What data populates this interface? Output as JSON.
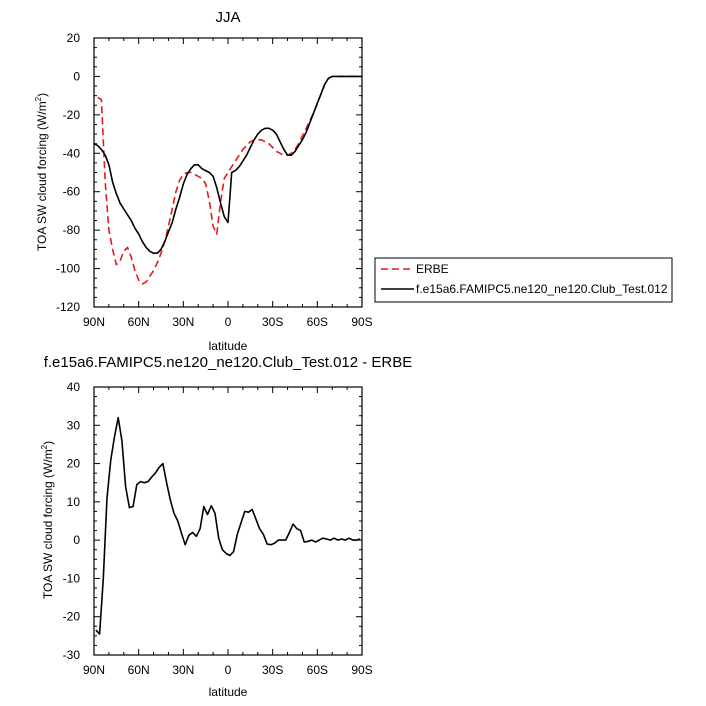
{
  "chart_data": [
    {
      "type": "line",
      "title": "JJA",
      "xlabel": "latitude",
      "ylabel_main": "TOA SW cloud forcing (W/m",
      "ylabel_sup": "2",
      "ylabel_end": ")",
      "xlim": [
        90,
        -90
      ],
      "ylim": [
        -120,
        20
      ],
      "x_ticks": [
        {
          "v": 90,
          "label": "90N"
        },
        {
          "v": 60,
          "label": "60N"
        },
        {
          "v": 30,
          "label": "30N"
        },
        {
          "v": 0,
          "label": "0"
        },
        {
          "v": -30,
          "label": "30S"
        },
        {
          "v": -60,
          "label": "60S"
        },
        {
          "v": -90,
          "label": "90S"
        }
      ],
      "y_ticks": [
        {
          "v": 20,
          "label": "20"
        },
        {
          "v": 0,
          "label": "0"
        },
        {
          "v": -20,
          "label": "-20"
        },
        {
          "v": -40,
          "label": "-40"
        },
        {
          "v": -60,
          "label": "-60"
        },
        {
          "v": -80,
          "label": "-80"
        },
        {
          "v": -100,
          "label": "-100"
        },
        {
          "v": -120,
          "label": "-120"
        }
      ],
      "legend_position": "right",
      "series": [
        {
          "name": "ERBE",
          "color": "#e41a1c",
          "dash": "dashed",
          "x": [
            87.5,
            85,
            82.5,
            80,
            77.5,
            75,
            72.5,
            70,
            67.5,
            65,
            62.5,
            60,
            57.5,
            55,
            52.5,
            50,
            47.5,
            45,
            42.5,
            40,
            37.5,
            35,
            32.5,
            30,
            27.5,
            25,
            22.5,
            20,
            17.5,
            15,
            12.5,
            10,
            7.5,
            5,
            2.5,
            0,
            -2.5,
            -5,
            -7.5,
            -10,
            -12.5,
            -15,
            -17.5,
            -20,
            -22.5,
            -25,
            -27.5,
            -30,
            -32.5,
            -35,
            -37.5,
            -40,
            -42.5,
            -45,
            -47.5,
            -50,
            -52.5,
            -55,
            -57.5,
            -60,
            -62.5,
            -65,
            -67.5,
            -70,
            -72.5,
            -75,
            -77.5,
            -80,
            -82.5,
            -85,
            -87.5
          ],
          "y": [
            -11,
            -12,
            -55,
            -80,
            -90,
            -98,
            -96,
            -91,
            -89,
            -94,
            -101,
            -106,
            -108,
            -107,
            -104,
            -101,
            -97,
            -92,
            -86,
            -78,
            -69,
            -60,
            -54,
            -51,
            -50,
            -50,
            -51,
            -52,
            -53,
            -56,
            -65,
            -78,
            -82,
            -65,
            -53,
            -50,
            -47,
            -44,
            -41,
            -38,
            -36,
            -34,
            -33,
            -33,
            -33,
            -34,
            -35,
            -37,
            -39,
            -40,
            -41,
            -41,
            -40,
            -38,
            -35,
            -31,
            -27,
            -23,
            -19,
            -14,
            -9,
            -4,
            -1,
            0,
            0,
            0,
            0,
            0,
            0,
            0,
            0
          ]
        },
        {
          "name": "f.e15a6.FAMIPC5.ne120_ne120.Club_Test.012",
          "color": "#000000",
          "dash": "solid",
          "x": [
            90,
            87.5,
            85,
            82.5,
            80,
            77.5,
            75,
            72.5,
            70,
            67.5,
            65,
            62.5,
            60,
            57.5,
            55,
            52.5,
            50,
            47.5,
            45,
            42.5,
            40,
            37.5,
            35,
            32.5,
            30,
            27.5,
            25,
            22.5,
            20,
            17.5,
            15,
            12.5,
            10,
            7.5,
            5,
            2.5,
            0,
            -2.5,
            -5,
            -7.5,
            -10,
            -12.5,
            -15,
            -17.5,
            -20,
            -22.5,
            -25,
            -27.5,
            -30,
            -32.5,
            -35,
            -37.5,
            -40,
            -42.5,
            -45,
            -47.5,
            -50,
            -52.5,
            -55,
            -57.5,
            -60,
            -62.5,
            -65,
            -67.5,
            -70,
            -72.5,
            -75,
            -77.5,
            -80,
            -82.5,
            -85,
            -87.5,
            -90
          ],
          "y": [
            -35,
            -36,
            -38,
            -41,
            -46,
            -55,
            -61,
            -66,
            -69,
            -72,
            -75,
            -79,
            -82,
            -86,
            -89,
            -91,
            -92,
            -92,
            -90,
            -86,
            -81,
            -76,
            -69,
            -63,
            -56,
            -51,
            -48,
            -46,
            -46,
            -48,
            -49,
            -50,
            -52,
            -58,
            -66,
            -73,
            -76,
            -50,
            -49,
            -47,
            -44,
            -41,
            -37,
            -33,
            -30,
            -28,
            -27,
            -27,
            -28,
            -30,
            -34,
            -38,
            -41,
            -41,
            -39,
            -36,
            -33,
            -29,
            -24,
            -19,
            -14,
            -9,
            -4,
            -1,
            0,
            0,
            0,
            0,
            0,
            0,
            0,
            0,
            0
          ]
        }
      ]
    },
    {
      "type": "line",
      "title": "f.e15a6.FAMIPC5.ne120_ne120.Club_Test.012 - ERBE",
      "xlabel": "latitude",
      "ylabel_main": "TOA SW cloud forcing (W/m",
      "ylabel_sup": "2",
      "ylabel_end": ")",
      "xlim": [
        90,
        -90
      ],
      "ylim": [
        -30,
        40
      ],
      "x_ticks": [
        {
          "v": 90,
          "label": "90N"
        },
        {
          "v": 60,
          "label": "60N"
        },
        {
          "v": 30,
          "label": "30N"
        },
        {
          "v": 0,
          "label": "0"
        },
        {
          "v": -30,
          "label": "30S"
        },
        {
          "v": -60,
          "label": "60S"
        },
        {
          "v": -90,
          "label": "90S"
        }
      ],
      "y_ticks": [
        {
          "v": 40,
          "label": "40"
        },
        {
          "v": 30,
          "label": "30"
        },
        {
          "v": 20,
          "label": "20"
        },
        {
          "v": 10,
          "label": "10"
        },
        {
          "v": 0,
          "label": "0"
        },
        {
          "v": -10,
          "label": "-10"
        },
        {
          "v": -20,
          "label": "-20"
        },
        {
          "v": -30,
          "label": "-30"
        }
      ],
      "series": [
        {
          "color": "#000000",
          "dash": "solid",
          "x": [
            88.75,
            86.25,
            83.75,
            81.25,
            78.75,
            76.25,
            73.75,
            71.25,
            68.75,
            66.25,
            63.75,
            61.25,
            58.75,
            56.25,
            53.75,
            51.25,
            48.75,
            46.25,
            43.75,
            41.25,
            38.75,
            36.25,
            33.75,
            31.25,
            28.75,
            26.25,
            23.75,
            21.25,
            18.75,
            16.25,
            13.75,
            11.25,
            8.75,
            6.25,
            3.75,
            1.25,
            -1.25,
            -3.75,
            -6.25,
            -8.75,
            -11.25,
            -13.75,
            -16.25,
            -18.75,
            -21.25,
            -23.75,
            -26.25,
            -28.75,
            -31.25,
            -33.75,
            -36.25,
            -38.75,
            -41.25,
            -43.75,
            -46.25,
            -48.75,
            -51.25,
            -53.75,
            -56.25,
            -58.75,
            -61.25,
            -63.75,
            -66.25,
            -68.75,
            -71.25,
            -73.75,
            -76.25,
            -78.75,
            -81.25,
            -83.75,
            -86.25,
            -88.75
          ],
          "y": [
            -23.5,
            -24.5,
            -10,
            11,
            21,
            27,
            32,
            26,
            14,
            8.5,
            8.8,
            14.5,
            15.3,
            15,
            15.3,
            16.5,
            17.5,
            19,
            20,
            15,
            10.5,
            7,
            5,
            1.8,
            -1.2,
            1.3,
            2,
            1,
            3,
            8.8,
            6.7,
            9,
            7,
            0.5,
            -2.5,
            -3.5,
            -4,
            -3,
            1.5,
            4.5,
            7.5,
            7.3,
            8,
            5.5,
            3,
            1.5,
            -1,
            -1.2,
            -0.8,
            0,
            0,
            0,
            2,
            4.2,
            3,
            2.5,
            -0.5,
            -0.3,
            0,
            -0.5,
            0,
            0.5,
            0.3,
            0,
            0.5,
            0,
            0.3,
            0,
            0.5,
            0,
            0,
            0.3
          ]
        }
      ]
    }
  ]
}
